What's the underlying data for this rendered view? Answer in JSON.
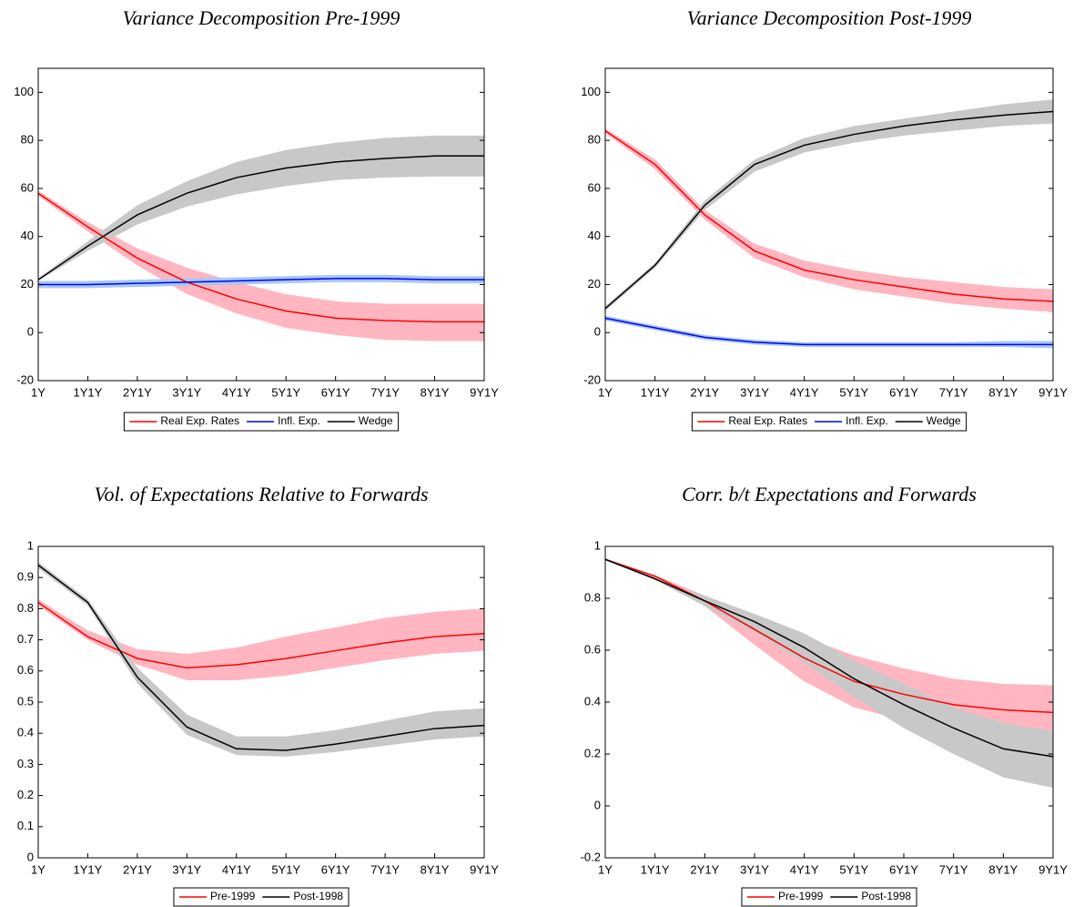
{
  "chart_data": [
    {
      "type": "line",
      "title": "Variance Decomposition Pre-1999",
      "categories": [
        "1Y",
        "1Y1Y",
        "2Y1Y",
        "3Y1Y",
        "4Y1Y",
        "5Y1Y",
        "6Y1Y",
        "7Y1Y",
        "8Y1Y",
        "9Y1Y"
      ],
      "ylim": [
        -20,
        110
      ],
      "yticks": [
        -20,
        0,
        20,
        40,
        60,
        80,
        100
      ],
      "series": [
        {
          "name": "Real Exp. Rates",
          "color": "#ff0000",
          "band_color": "#ffb6c1",
          "values": [
            58,
            44,
            31,
            21,
            14,
            9,
            6,
            5,
            4.5,
            4.5
          ],
          "upper": [
            59,
            46,
            35,
            27,
            21,
            16,
            13,
            12,
            12,
            12
          ],
          "lower": [
            57,
            42,
            28,
            16,
            8,
            2,
            -1,
            -3,
            -3.5,
            -3.5
          ]
        },
        {
          "name": "Infl. Exp.",
          "color": "#0000ff",
          "band_color": "#a8c8f0",
          "values": [
            20,
            20,
            20.5,
            21,
            21.5,
            22,
            22.5,
            22.5,
            22,
            22
          ],
          "upper": [
            21.5,
            21.5,
            22,
            22.5,
            23,
            23.5,
            24,
            24,
            23.5,
            23.5
          ],
          "lower": [
            18.5,
            18.5,
            19,
            19.5,
            20,
            20.5,
            21,
            21,
            20.5,
            20.5
          ]
        },
        {
          "name": "Wedge",
          "color": "#000000",
          "band_color": "#c8c8c8",
          "values": [
            22,
            36,
            49,
            58,
            64.5,
            68.5,
            71,
            72.5,
            73.5,
            73.5
          ],
          "upper": [
            22.5,
            38,
            53,
            63,
            71,
            76,
            79,
            81,
            82,
            82
          ],
          "lower": [
            21.5,
            34,
            45,
            52.5,
            57.5,
            61,
            63.5,
            64.5,
            65,
            65
          ]
        }
      ]
    },
    {
      "type": "line",
      "title": "Variance Decomposition Post-1999",
      "categories": [
        "1Y",
        "1Y1Y",
        "2Y1Y",
        "3Y1Y",
        "4Y1Y",
        "5Y1Y",
        "6Y1Y",
        "7Y1Y",
        "8Y1Y",
        "9Y1Y"
      ],
      "ylim": [
        -20,
        110
      ],
      "yticks": [
        -20,
        0,
        20,
        40,
        60,
        80,
        100
      ],
      "series": [
        {
          "name": "Real Exp. Rates",
          "color": "#ff0000",
          "band_color": "#ffb6c1",
          "values": [
            84,
            70,
            49,
            34,
            26,
            22,
            19,
            16,
            14,
            13
          ],
          "upper": [
            85,
            72,
            51,
            37,
            30,
            26,
            23,
            21,
            19,
            18
          ],
          "lower": [
            83,
            68,
            47,
            31,
            23,
            18,
            15,
            12,
            10,
            8.5
          ]
        },
        {
          "name": "Infl. Exp.",
          "color": "#0000ff",
          "band_color": "#a8c8f0",
          "values": [
            6,
            2,
            -2,
            -4,
            -5,
            -5,
            -5,
            -5,
            -5,
            -5
          ],
          "upper": [
            7,
            3,
            -1,
            -3,
            -4,
            -4,
            -4,
            -4,
            -3.5,
            -3.5
          ],
          "lower": [
            5,
            1,
            -3,
            -5,
            -6,
            -6,
            -6,
            -6,
            -6,
            -6.5
          ]
        },
        {
          "name": "Wedge",
          "color": "#000000",
          "band_color": "#c8c8c8",
          "values": [
            10,
            28,
            53,
            70,
            78,
            82.5,
            86,
            88.5,
            90.5,
            92
          ],
          "upper": [
            11,
            29,
            55,
            72,
            81,
            86,
            89,
            92,
            95,
            97
          ],
          "lower": [
            9,
            27,
            51,
            67,
            75,
            79,
            82,
            84,
            86,
            87
          ]
        }
      ]
    },
    {
      "type": "line",
      "title": "Vol. of Expectations Relative to Forwards",
      "categories": [
        "1Y",
        "1Y1Y",
        "2Y1Y",
        "3Y1Y",
        "4Y1Y",
        "5Y1Y",
        "6Y1Y",
        "7Y1Y",
        "8Y1Y",
        "9Y1Y"
      ],
      "ylim": [
        0,
        1
      ],
      "yticks": [
        0,
        0.1,
        0.2,
        0.3,
        0.4,
        0.5,
        0.6,
        0.7,
        0.8,
        0.9,
        1
      ],
      "series": [
        {
          "name": "Pre-1999",
          "color": "#ff0000",
          "band_color": "#ffb6c1",
          "values": [
            0.82,
            0.71,
            0.64,
            0.61,
            0.62,
            0.64,
            0.665,
            0.69,
            0.71,
            0.72
          ],
          "upper": [
            0.83,
            0.73,
            0.67,
            0.655,
            0.675,
            0.71,
            0.74,
            0.77,
            0.79,
            0.8
          ],
          "lower": [
            0.81,
            0.7,
            0.62,
            0.57,
            0.57,
            0.585,
            0.61,
            0.635,
            0.655,
            0.665
          ]
        },
        {
          "name": "Post-1998",
          "color": "#000000",
          "band_color": "#c8c8c8",
          "values": [
            0.94,
            0.82,
            0.58,
            0.42,
            0.35,
            0.345,
            0.365,
            0.39,
            0.415,
            0.425
          ],
          "upper": [
            0.95,
            0.83,
            0.61,
            0.46,
            0.39,
            0.39,
            0.41,
            0.44,
            0.47,
            0.48
          ],
          "lower": [
            0.93,
            0.81,
            0.56,
            0.395,
            0.33,
            0.325,
            0.34,
            0.36,
            0.38,
            0.39
          ]
        }
      ]
    },
    {
      "type": "line",
      "title": "Corr. b/t Expectations and Forwards",
      "categories": [
        "1Y",
        "1Y1Y",
        "2Y1Y",
        "3Y1Y",
        "4Y1Y",
        "5Y1Y",
        "6Y1Y",
        "7Y1Y",
        "8Y1Y",
        "9Y1Y"
      ],
      "ylim": [
        -0.2,
        1
      ],
      "yticks": [
        -0.2,
        0,
        0.2,
        0.4,
        0.6,
        0.8,
        1
      ],
      "series": [
        {
          "name": "Pre-1999",
          "color": "#ff0000",
          "band_color": "#ffb6c1",
          "values": [
            0.95,
            0.885,
            0.79,
            0.68,
            0.57,
            0.48,
            0.43,
            0.39,
            0.37,
            0.36
          ],
          "upper": [
            0.95,
            0.89,
            0.81,
            0.72,
            0.65,
            0.58,
            0.53,
            0.49,
            0.47,
            0.465
          ],
          "lower": [
            0.95,
            0.88,
            0.77,
            0.62,
            0.48,
            0.38,
            0.33,
            0.32,
            0.31,
            0.28
          ]
        },
        {
          "name": "Post-1998",
          "color": "#000000",
          "band_color": "#c8c8c8",
          "values": [
            0.95,
            0.875,
            0.79,
            0.71,
            0.61,
            0.49,
            0.39,
            0.3,
            0.22,
            0.19
          ],
          "upper": [
            0.95,
            0.88,
            0.81,
            0.74,
            0.665,
            0.56,
            0.47,
            0.38,
            0.32,
            0.29
          ],
          "lower": [
            0.95,
            0.87,
            0.77,
            0.67,
            0.55,
            0.42,
            0.3,
            0.2,
            0.11,
            0.07
          ]
        }
      ]
    }
  ]
}
